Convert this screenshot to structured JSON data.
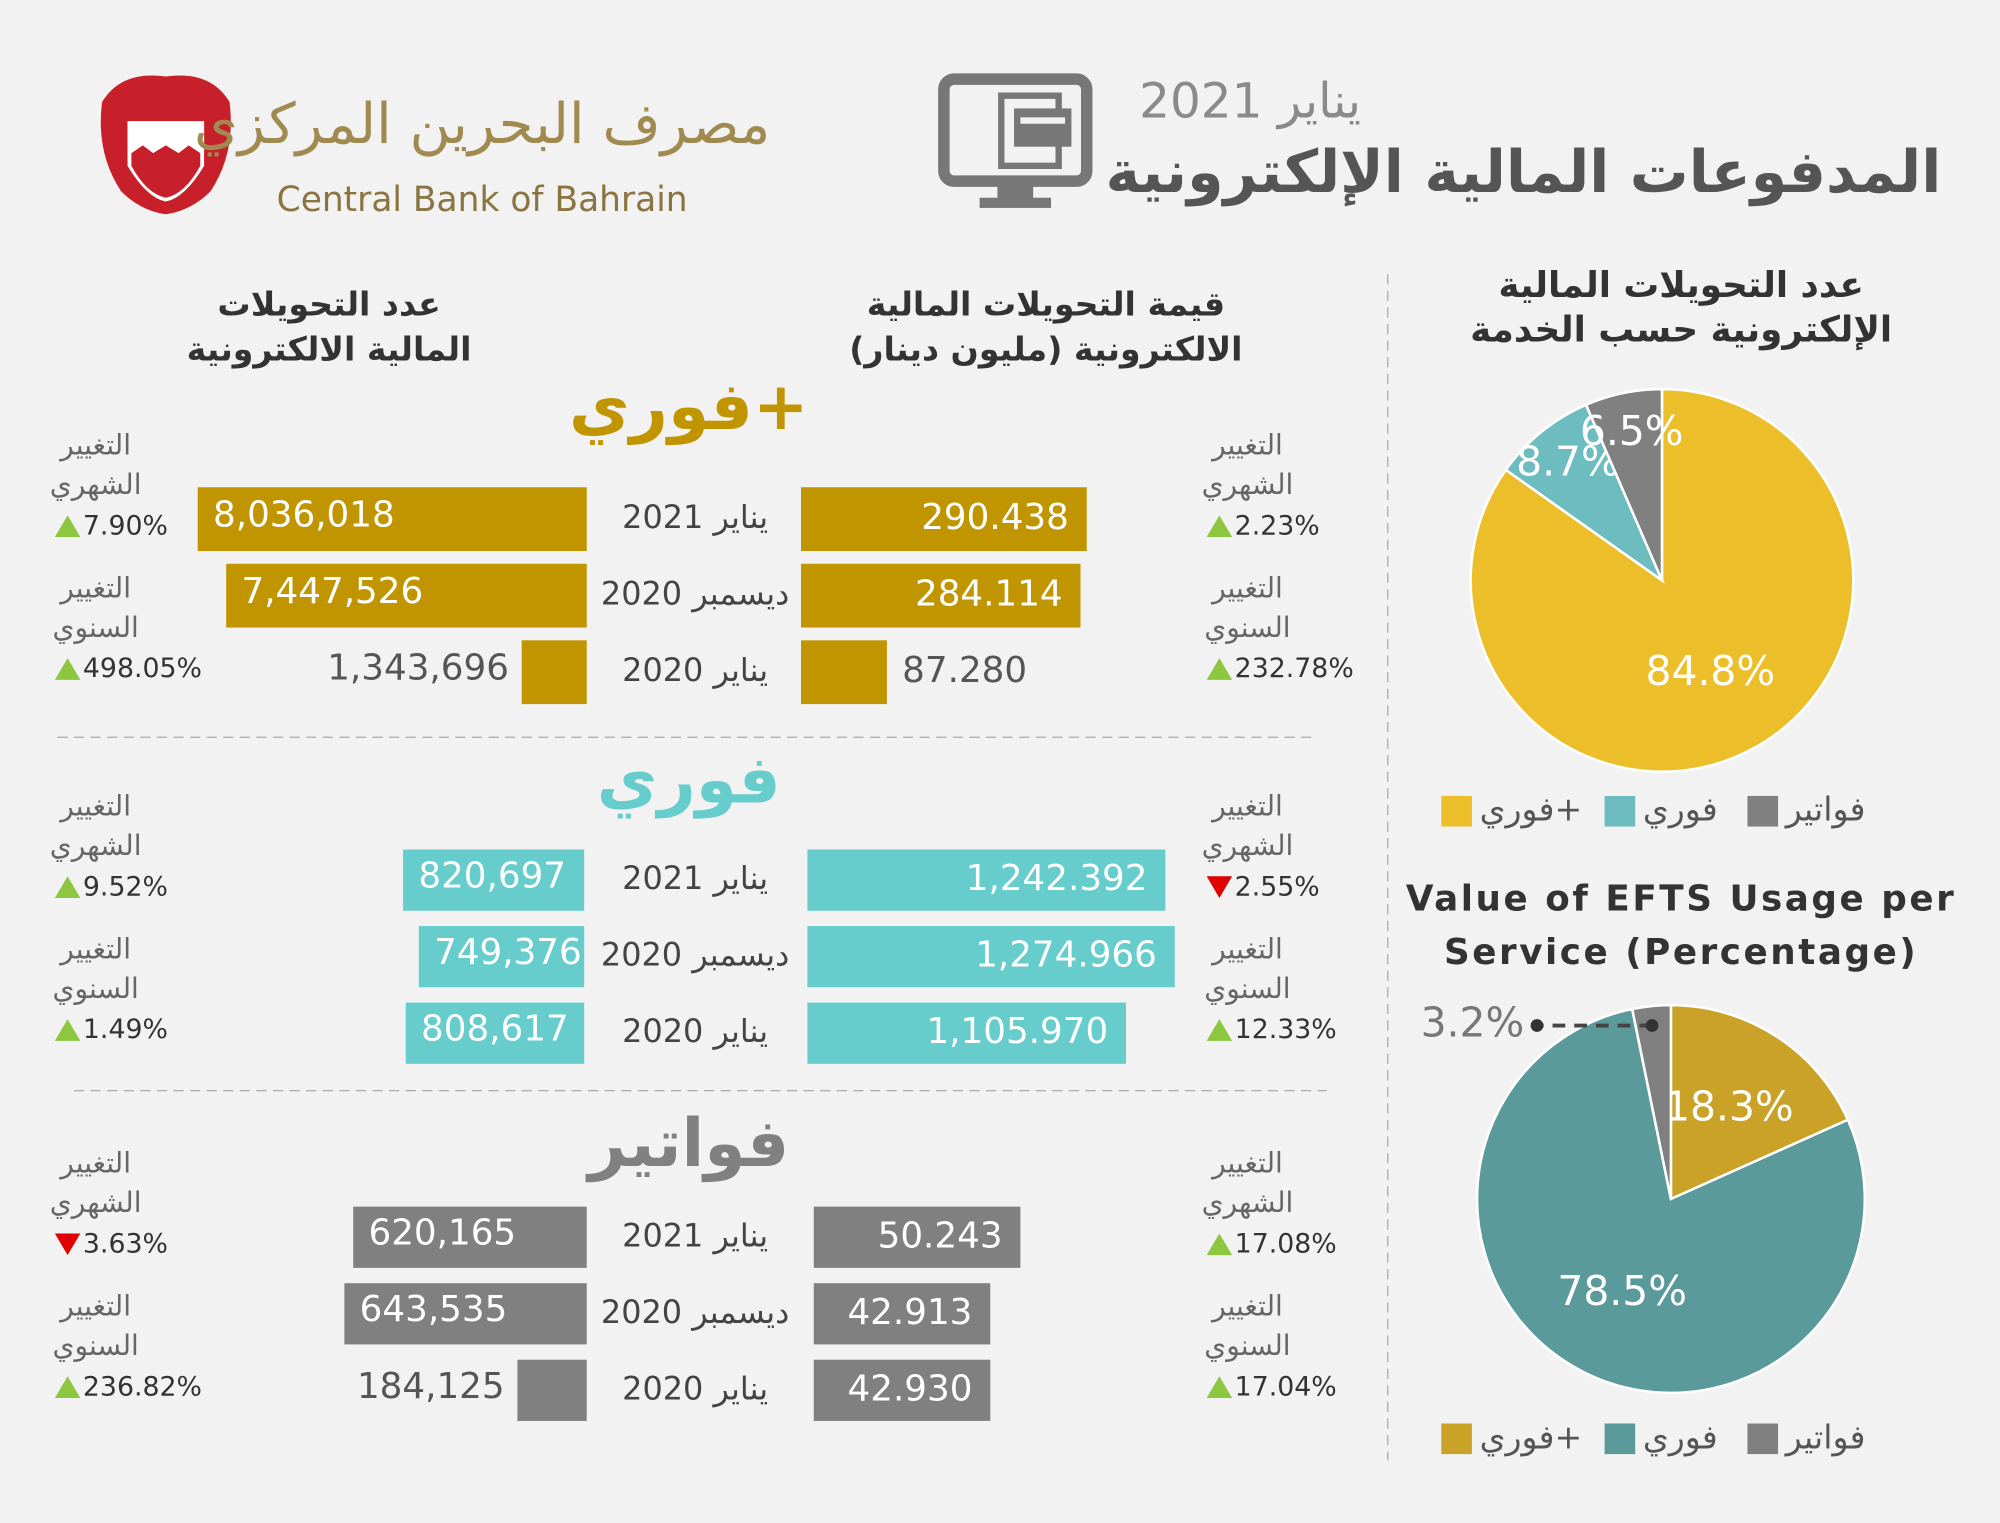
{
  "header": {
    "title": "المدفوعات المالية الإلكترونية",
    "date": "يناير 2021",
    "bank_name_ar": "مصرف البحرين المركزي",
    "bank_name_en": "Central Bank of Bahrain"
  },
  "column_titles": {
    "value": [
      "قيمة التحويلات المالية",
      "الالكترونية (مليون دينار)"
    ],
    "count": [
      "عدد التحويلات",
      "المالية الالكترونية"
    ]
  },
  "periods": [
    "يناير 2021",
    "ديسمبر 2020",
    "يناير 2020"
  ],
  "change_labels": {
    "monthly": [
      "التغيير",
      "الشهري"
    ],
    "yearly": [
      "التغيير",
      "السنوي"
    ]
  },
  "sections": [
    {
      "title": "فوري+",
      "color": "#c09500",
      "count": {
        "values": [
          8036018,
          7447526,
          1343696
        ],
        "value_labels": [
          "8,036,018",
          "7,447,526",
          "1,343,696"
        ],
        "monthly": {
          "text": "7.90%",
          "direction": "up"
        },
        "yearly": {
          "text": "498.05%",
          "direction": "up"
        }
      },
      "value": {
        "values": [
          290.438,
          284.114,
          87.28
        ],
        "value_labels": [
          "290.438",
          "284.114",
          "87.280"
        ],
        "monthly": {
          "text": "2.23%",
          "direction": "up"
        },
        "yearly": {
          "text": "232.78%",
          "direction": "up"
        }
      }
    },
    {
      "title": "فوري",
      "color": "#66cccc",
      "count": {
        "values": [
          820697,
          749376,
          808617
        ],
        "value_labels": [
          "820,697",
          "749,376",
          "808,617"
        ],
        "monthly": {
          "text": "9.52%",
          "direction": "up"
        },
        "yearly": {
          "text": "1.49%",
          "direction": "up"
        }
      },
      "value": {
        "values": [
          1242.392,
          1274.966,
          1105.97
        ],
        "value_labels": [
          "1,242.392",
          "1,274.966",
          "1,105.970"
        ],
        "monthly": {
          "text": "2.55%",
          "direction": "down"
        },
        "yearly": {
          "text": "12.33%",
          "direction": "up"
        }
      }
    },
    {
      "title": "فواتير",
      "color": "#808080",
      "count": {
        "values": [
          620165,
          643535,
          184125
        ],
        "value_labels": [
          "620,165",
          "643,535",
          "184,125"
        ],
        "monthly": {
          "text": "3.63%",
          "direction": "down"
        },
        "yearly": {
          "text": "236.82%",
          "direction": "up"
        }
      },
      "value": {
        "values": [
          50.243,
          42.913,
          42.93
        ],
        "value_labels": [
          "50.243",
          "42.913",
          "42.930"
        ],
        "monthly": {
          "text": "17.08%",
          "direction": "up"
        },
        "yearly": {
          "text": "17.04%",
          "direction": "up"
        }
      }
    }
  ],
  "chart_data": [
    {
      "type": "pie",
      "title": [
        "عدد التحويلات المالية",
        "الإلكترونية حسب الخدمة"
      ],
      "categories": [
        "فوري+",
        "فوري",
        "فواتير"
      ],
      "values": [
        84.8,
        8.7,
        6.5
      ],
      "value_labels": [
        "84.8%",
        "8.7%",
        "6.5%"
      ],
      "colors": [
        "#ecbf2a",
        "#6cbcc0",
        "#808080"
      ]
    },
    {
      "type": "pie",
      "title": [
        "Value of EFTS Usage per",
        "Service (Percentage)"
      ],
      "categories": [
        "فوري+",
        "فوري",
        "فواتير"
      ],
      "values": [
        18.3,
        78.5,
        3.2
      ],
      "value_labels": [
        "18.3%",
        "78.5%",
        "3.2%"
      ],
      "colors": [
        "#c9a227",
        "#5a9a9a",
        "#808080"
      ]
    }
  ]
}
